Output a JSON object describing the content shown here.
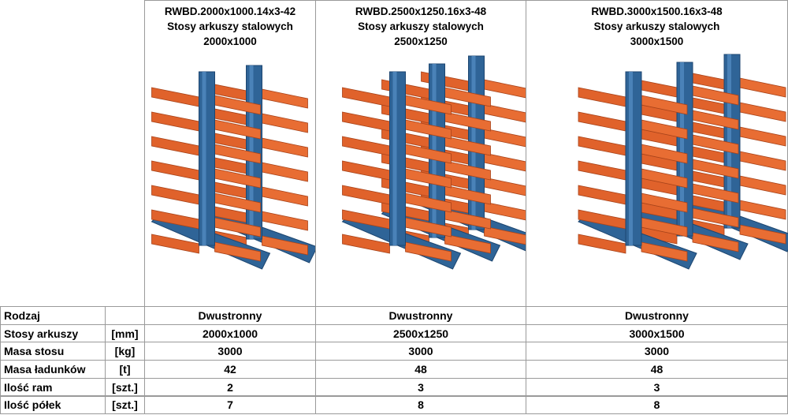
{
  "products": [
    {
      "code": "RWBD.2000x1000.14x3-42",
      "desc": "Stosy arkuszy stalowych",
      "size": "2000x1000"
    },
    {
      "code": "RWBD.2500x1250.16x3-48",
      "desc": "Stosy arkuszy stalowych",
      "size": "2500x1250"
    },
    {
      "code": "RWBD.3000x1500.16x3-48",
      "desc": "Stosy arkuszy stalowych",
      "size": "3000x1500"
    }
  ],
  "table": {
    "rows": [
      {
        "label": "Rodzaj",
        "values": [
          "Dwustronny",
          "Dwustronny",
          "Dwustronny"
        ]
      },
      {
        "label": "Stosy arkuszy",
        "unit": "[mm]",
        "values": [
          "2000x1000",
          "2500x1250",
          "3000x1500"
        ]
      },
      {
        "label": "Masa stosu",
        "unit": "[kg]",
        "values": [
          "3000",
          "3000",
          "3000"
        ]
      },
      {
        "label": "Masa ładunków",
        "unit": "[t]",
        "values": [
          "42",
          "48",
          "48"
        ]
      },
      {
        "label": "Ilość ram",
        "unit": "[szt.]",
        "values": [
          "2",
          "3",
          "3"
        ]
      },
      {
        "label": "Ilość półek",
        "unit": "[szt.]",
        "values": [
          "7",
          "8",
          "8"
        ]
      }
    ]
  }
}
